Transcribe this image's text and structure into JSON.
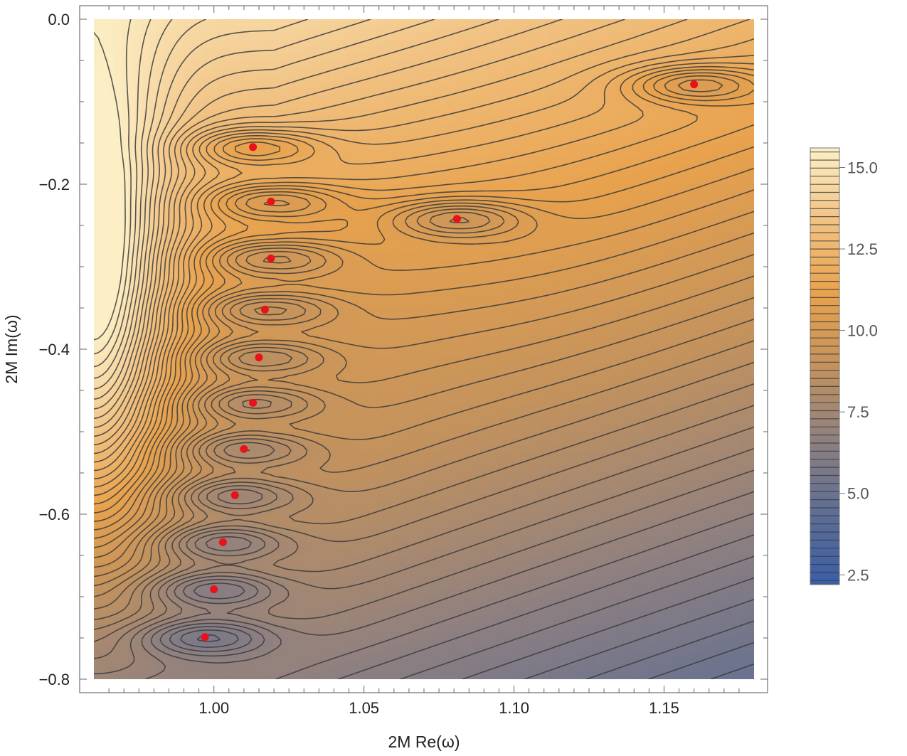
{
  "chart_data": {
    "type": "contour",
    "xlabel": "2M Re(ω)",
    "ylabel": "2M Im(ω)",
    "xlim": [
      0.96,
      1.18
    ],
    "ylim": [
      -0.8,
      0.0
    ],
    "x_ticks": [
      {
        "value": 1.0,
        "label": "1.00"
      },
      {
        "value": 1.05,
        "label": "1.05"
      },
      {
        "value": 1.1,
        "label": "1.10"
      },
      {
        "value": 1.15,
        "label": "1.15"
      }
    ],
    "y_ticks": [
      {
        "value": 0.0,
        "label": "0.0"
      },
      {
        "value": -0.2,
        "label": "−0.2"
      },
      {
        "value": -0.4,
        "label": "−0.4"
      },
      {
        "value": -0.6,
        "label": "−0.6"
      },
      {
        "value": -0.8,
        "label": "−0.8"
      }
    ],
    "colorbar": {
      "range": [
        2.2,
        15.6
      ],
      "ticks": [
        {
          "value": 2.5,
          "label": "2.5"
        },
        {
          "value": 5.0,
          "label": "5.0"
        },
        {
          "value": 7.5,
          "label": "7.5"
        },
        {
          "value": 10.0,
          "label": "10.0"
        },
        {
          "value": 12.5,
          "label": "12.5"
        },
        {
          "value": 15.0,
          "label": "15.0"
        }
      ],
      "colors": [
        "#3a5ea8",
        "#5e6e94",
        "#8f8080",
        "#c3925d",
        "#e8a24d",
        "#f1c283",
        "#fcefc6"
      ],
      "contour_levels": 54
    },
    "points": {
      "color": "#e8121a",
      "x": [
        1.013,
        1.019,
        1.019,
        1.081,
        1.16,
        1.017,
        1.015,
        1.013,
        1.01,
        1.007,
        1.003,
        1.0,
        0.997
      ],
      "y": [
        -0.155,
        -0.221,
        -0.29,
        -0.242,
        -0.079,
        -0.352,
        -0.41,
        -0.465,
        -0.521,
        -0.577,
        -0.634,
        -0.691,
        -0.749
      ]
    },
    "grid": false,
    "legend": "colorbar-right"
  }
}
